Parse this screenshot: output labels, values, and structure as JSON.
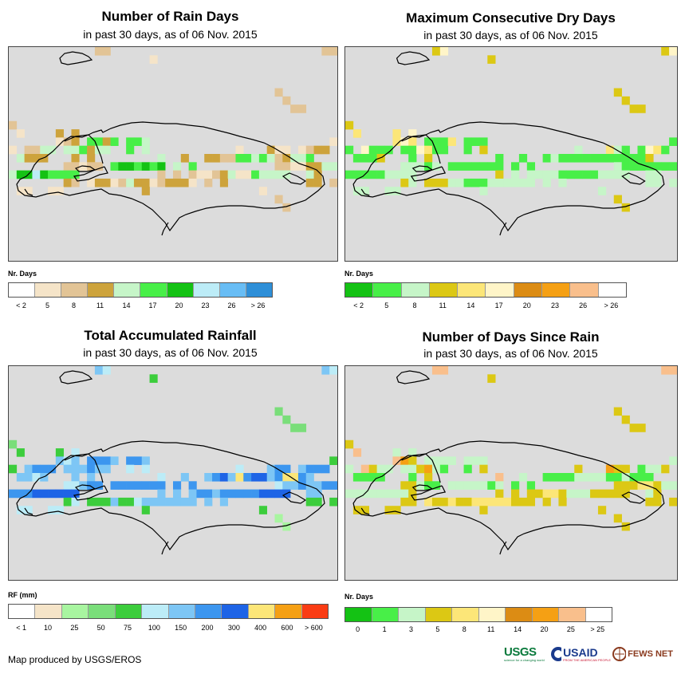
{
  "panels": [
    {
      "title": "Number of Rain Days",
      "subtitle": "in past 30 days, as of 06 Nov. 2015",
      "legend_title": "Nr. Days",
      "legend_labels": [
        "< 2",
        "5",
        "8",
        "11",
        "14",
        "17",
        "20",
        "23",
        "26",
        "> 26"
      ],
      "legend_colors": [
        "#ffffff",
        "#f5e4c8",
        "#e2c496",
        "#cda33c",
        "#c6f5c8",
        "#48ef48",
        "#14c214",
        "#bcecf7",
        "#68bdf5",
        "#2e8fd8"
      ],
      "cells": "...........22...........................22..................1.......................................................................................................................................................................................2..........................................2..........................................22..............................................2..........................................1....3.3.......................................123.5535.554.......................11.2244.445344..5.4...........1...311.1233..4333...3.3........4..3..33225545423445..........22122.5665656.4.5..........22113344466765555..........2.2.2112341154444..43.........32.13312433123331.2.3..........33.2.11..11..........3..............1...........................................2..........................................2................................................................................................................................................"
    },
    {
      "title": "Maximum Consecutive Dry Days",
      "subtitle": "in past 30 days, as of 06 Nov. 2015",
      "legend_title": "Nr. Days",
      "legend_labels": [
        "< 2",
        "5",
        "8",
        "11",
        "14",
        "17",
        "20",
        "23",
        "26",
        "> 26"
      ],
      "legend_colors": [
        "#14c214",
        "#48ef48",
        "#c6f5c8",
        "#dcc814",
        "#fce678",
        "#fff5c8",
        "#dc8c14",
        "#f5a014",
        "#f9bf8c",
        "#ffffff"
      ],
      "cells": "...........35...........................35..................3.......................................................................................................................................................................................3..........................................3..........................................33..............................................3..........................................4....4.5.......................................454.1114.111.......................11.5111.115411..1.3...........2...421.1541..1113...1.3........1..1..12111111111113..........22212.1111111.1.1..........21111111111112222..........3.2.2222111112222..22.........32.33322111222222.2.2..........22.2.22..22..........2..............2...........................................3..........................................3................................................................................................................................................"
    },
    {
      "title": "Total Accumulated Rainfall",
      "subtitle": "in past 30 days, as of 06 Nov. 2015",
      "legend_title": "RF (mm)",
      "legend_labels": [
        "< 1",
        "10",
        "25",
        "50",
        "75",
        "100",
        "150",
        "200",
        "300",
        "400",
        "600",
        "> 600"
      ],
      "legend_colors": [
        "#ffffff",
        "#f5e4c8",
        "#a8f5a0",
        "#7ade7a",
        "#3ccd3c",
        "#bcecf7",
        "#7dc6f5",
        "#3c96ef",
        "#1e64e6",
        "#fce678",
        "#f5a014",
        "#fa3c14"
      ],
      "cells": "...........65...........................65..................4.......................................................................................................................................................................................3..........................................3..........................................33..............................................3..........................................4....4.5.......................................656.7776.776.......................44.6777.666766..5.5...........5...677.6777..6656...6.6........5..6..67869788679976..........55677.7777777.7.7..........56676677777888888..........6.6.6776777778888..66.........45.44464456666666.6.6..........44.4.55..55..........4..............4...........................................2..........................................2................................................................................................................................................"
    },
    {
      "title": "Number of Days Since Rain",
      "subtitle": "in past 30 days, as of 06 Nov. 2015",
      "legend_title": "Nr. Days",
      "legend_labels": [
        "0",
        "1",
        "3",
        "5",
        "8",
        "11",
        "14",
        "20",
        "25",
        "> 25"
      ],
      "legend_colors": [
        "#14c214",
        "#48ef48",
        "#c6f5c8",
        "#dcc814",
        "#fce678",
        "#fff5c8",
        "#dc8c14",
        "#f5a014",
        "#f9bf8c",
        "#ffffff"
      ],
      "cells": "...........88...........................88..................3.......................................................................................................................................................................................3..........................................3..........................................33..............................................3..........................................8....2.2.......................................873.2222.222.......................22.8322.223721..1.3...........3...733.1223..1111...1.3........8..2..11112222112111..........33211.2222212.1.1..........33344322222222223..........3.3.3344322233333..23.........33.43343344444333.3.3..........33.3.33..33..........3..............3...........................................3..........................................3................................................................................................................................................"
    }
  ],
  "credit": "Map produced by USGS/EROS",
  "logos": {
    "usgs": "USGS",
    "usgs_tagline": "science for a changing world",
    "usaid": "USAID",
    "usaid_tagline": "FROM THE AMERICAN PEOPLE",
    "fewsnet": "FEWS NET"
  }
}
